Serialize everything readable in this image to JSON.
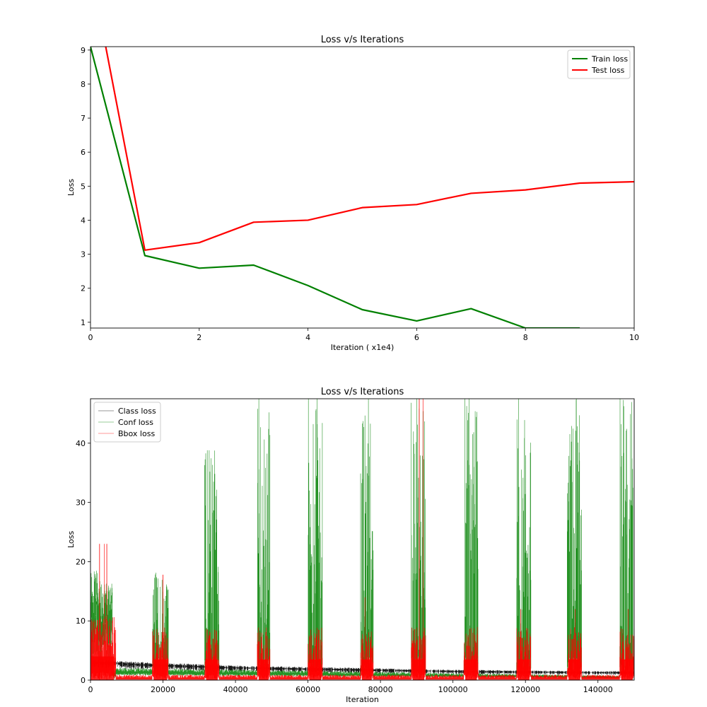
{
  "chart_data": [
    {
      "type": "line",
      "title": "Loss v/s Iterations",
      "xlabel": "Iteration ( x1e4)",
      "ylabel": "Loss",
      "xlim": [
        0,
        10
      ],
      "ylim": [
        0.83,
        9.1
      ],
      "xticks": [
        0,
        2,
        4,
        6,
        8,
        10
      ],
      "yticks": [
        1,
        2,
        3,
        4,
        5,
        6,
        7,
        8,
        9
      ],
      "legend_position": "top-right",
      "grid": false,
      "series": [
        {
          "name": "Train loss",
          "color": "#008000",
          "x": [
            0,
            1,
            2,
            3,
            4,
            5,
            6,
            7,
            8,
            9
          ],
          "y": [
            9.1,
            2.96,
            2.59,
            2.68,
            2.08,
            1.37,
            1.04,
            1.4,
            0.83,
            0.83
          ]
        },
        {
          "name": "Test loss",
          "color": "#ff0000",
          "x": [
            0.28,
            1,
            2,
            3,
            4,
            5,
            6,
            7,
            8,
            9,
            10
          ],
          "y": [
            9.1,
            3.12,
            3.34,
            3.94,
            4.0,
            4.37,
            4.46,
            4.79,
            4.89,
            5.09,
            5.13
          ]
        }
      ]
    },
    {
      "type": "line",
      "title": "Loss v/s Iterations",
      "xlabel": "Iteration",
      "ylabel": "Loss",
      "xlim": [
        0,
        150000
      ],
      "ylim": [
        0,
        47.5
      ],
      "xticks": [
        0,
        20000,
        40000,
        60000,
        80000,
        100000,
        120000,
        140000
      ],
      "yticks": [
        0,
        10,
        20,
        30,
        40
      ],
      "legend_position": "top-left",
      "grid": false,
      "spike_windows": [
        [
          17000,
          21500
        ],
        [
          31500,
          35500
        ],
        [
          46000,
          49500
        ],
        [
          60000,
          64000
        ],
        [
          74500,
          78000
        ],
        [
          88500,
          92500
        ],
        [
          103000,
          107000
        ],
        [
          117500,
          121500
        ],
        [
          131500,
          135500
        ],
        [
          146000,
          150000
        ]
      ],
      "series": [
        {
          "name": "Class loss",
          "color": "#000000",
          "x": [
            0,
            7000,
            10000,
            20000,
            40000,
            60000,
            80000,
            100000,
            120000,
            140000,
            150000
          ],
          "y": [
            3.0,
            2.9,
            2.7,
            2.5,
            2.1,
            1.9,
            1.7,
            1.5,
            1.4,
            1.3,
            1.3
          ]
        },
        {
          "name": "Conf loss",
          "color": "#008000",
          "x": [
            0,
            5000,
            7000,
            20000,
            33000,
            48000,
            62000,
            76000,
            90000,
            104000,
            119000,
            133000,
            148000
          ],
          "y": [
            18.5,
            17.0,
            1.8,
            19.0,
            38.8,
            47.5,
            47.5,
            47.5,
            47.5,
            47.5,
            47.5,
            47.5,
            47.5
          ]
        },
        {
          "name": "Bbox loss",
          "color": "#ff0000",
          "x": [
            0,
            2500,
            4500,
            7000,
            20000,
            33000,
            48000,
            62000,
            76000,
            90700,
            104000,
            119000,
            133000,
            148000
          ],
          "y": [
            11.0,
            23.0,
            23.0,
            0.8,
            17.8,
            10.0,
            13.0,
            12.0,
            14.0,
            47.5,
            12.0,
            12.0,
            12.0,
            12.0
          ]
        }
      ]
    }
  ]
}
